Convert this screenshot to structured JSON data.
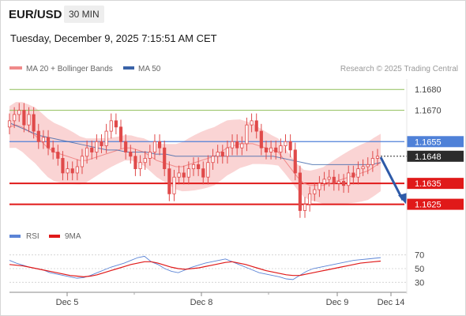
{
  "header": {
    "symbol": "EUR/USD",
    "timeframe": "30 MIN",
    "datetime": "Tuesday, December 9, 2025 7:15:51 AM CET"
  },
  "legend": {
    "ma20_bb": "MA 20 + Bollinger Bands",
    "ma50": "MA 50",
    "credit": "Research © 2025 Trading Central",
    "rsi": "RSI",
    "rsi_ma": "9MA"
  },
  "colors": {
    "candle": "#e04a4a",
    "bollinger_fill": "#f9c9c9",
    "ma50": "#3a63a8",
    "support": "#e01919",
    "resistance_pivot": "#4f81d8",
    "resistance_green": "#8fbf5a",
    "current_price": "#2b2b2b",
    "rsi": "#5b84d6",
    "rsi_ma": "#e01919",
    "arrow": "#2e5aa8"
  },
  "chart_data": [
    {
      "type": "candlestick",
      "ylim": [
        1.1615,
        1.1685
      ],
      "x_ticks": [
        "Dec 5",
        "Dec 8",
        "Dec 9",
        "Dec 14"
      ],
      "levels": [
        {
          "value": 1.168,
          "label": "1.1680",
          "kind": "resistance-minor"
        },
        {
          "value": 1.167,
          "label": "1.1670",
          "kind": "resistance-minor"
        },
        {
          "value": 1.1655,
          "label": "1.1655",
          "kind": "pivot"
        },
        {
          "value": 1.1648,
          "label": "1.1648",
          "kind": "current"
        },
        {
          "value": 1.1635,
          "label": "1.1635",
          "kind": "support"
        },
        {
          "value": 1.1625,
          "label": "1.1625",
          "kind": "support"
        }
      ],
      "close": [
        1.1665,
        1.1668,
        1.167,
        1.1663,
        1.1668,
        1.166,
        1.1655,
        1.1657,
        1.1652,
        1.165,
        1.1647,
        1.164,
        1.1642,
        1.164,
        1.1643,
        1.1648,
        1.1652,
        1.165,
        1.1655,
        1.1653,
        1.166,
        1.1665,
        1.1662,
        1.1655,
        1.165,
        1.1648,
        1.1642,
        1.1645,
        1.1647,
        1.165,
        1.1655,
        1.1652,
        1.1642,
        1.163,
        1.1638,
        1.164,
        1.1638,
        1.1642,
        1.1644,
        1.1642,
        1.1638,
        1.1645,
        1.1648,
        1.165,
        1.1648,
        1.1652,
        1.1655,
        1.1652,
        1.1654,
        1.1663,
        1.1665,
        1.166,
        1.1652,
        1.165,
        1.1652,
        1.165,
        1.1653,
        1.1655,
        1.1651,
        1.164,
        1.1622,
        1.1625,
        1.163,
        1.1632,
        1.1635,
        1.1637,
        1.1638,
        1.1635,
        1.1636,
        1.1634,
        1.164,
        1.1638,
        1.1642,
        1.1643,
        1.1644,
        1.1647,
        1.1648
      ],
      "ma20": [
        1.1662,
        1.1663,
        1.1662,
        1.166,
        1.1658,
        1.1655,
        1.1652,
        1.165,
        1.1649,
        1.1648,
        1.1647,
        1.1646,
        1.1646,
        1.1647,
        1.1648,
        1.1649,
        1.165,
        1.1651,
        1.1652,
        1.1652,
        1.1651,
        1.165,
        1.1648,
        1.1646,
        1.1645,
        1.1644,
        1.1643,
        1.1643,
        1.1644,
        1.1645,
        1.1646,
        1.1647,
        1.1648,
        1.165,
        1.1652,
        1.1653,
        1.1654,
        1.1654,
        1.1654,
        1.1653,
        1.1652,
        1.1651,
        1.165,
        1.1646,
        1.1642,
        1.1638,
        1.1635,
        1.1634,
        1.1634,
        1.1634,
        1.1635,
        1.1636,
        1.1637,
        1.1638,
        1.1639,
        1.164,
        1.1641,
        1.1643,
        1.1645
      ],
      "ma50": [
        1.1664,
        1.1662,
        1.166,
        1.1658,
        1.1657,
        1.1656,
        1.1655,
        1.1654,
        1.1653,
        1.1652,
        1.1651,
        1.1651,
        1.165,
        1.165,
        1.165,
        1.1649,
        1.1649,
        1.1648,
        1.1648,
        1.1648,
        1.1648,
        1.1648,
        1.1648,
        1.1648,
        1.1648,
        1.1648,
        1.1648,
        1.1648,
        1.1647,
        1.1646,
        1.1645,
        1.1644,
        1.1644,
        1.1644,
        1.1644,
        1.1644,
        1.1644,
        1.1644,
        1.1645
      ]
    },
    {
      "type": "line",
      "ylim": [
        20,
        80
      ],
      "y_ticks": [
        30,
        50,
        70
      ],
      "series": [
        {
          "name": "RSI",
          "values": [
            62,
            58,
            55,
            52,
            50,
            48,
            44,
            42,
            40,
            38,
            36,
            37,
            40,
            44,
            48,
            52,
            55,
            58,
            62,
            66,
            68,
            60,
            56,
            50,
            46,
            44,
            48,
            52,
            55,
            58,
            60,
            62,
            64,
            60,
            56,
            52,
            48,
            44,
            42,
            40,
            38,
            35,
            34,
            40,
            46,
            50,
            52,
            54,
            56,
            58,
            60,
            62,
            63,
            64,
            65,
            66
          ]
        },
        {
          "name": "9MA",
          "values": [
            56,
            55,
            54,
            52,
            50,
            48,
            46,
            44,
            42,
            40,
            39,
            38,
            39,
            41,
            44,
            47,
            50,
            53,
            56,
            58,
            60,
            60,
            58,
            55,
            52,
            50,
            49,
            50,
            51,
            53,
            55,
            57,
            59,
            60,
            58,
            56,
            53,
            50,
            47,
            45,
            43,
            41,
            40,
            40,
            42,
            44,
            46,
            48,
            50,
            52,
            54,
            56,
            58,
            59,
            60,
            61
          ]
        }
      ]
    }
  ]
}
